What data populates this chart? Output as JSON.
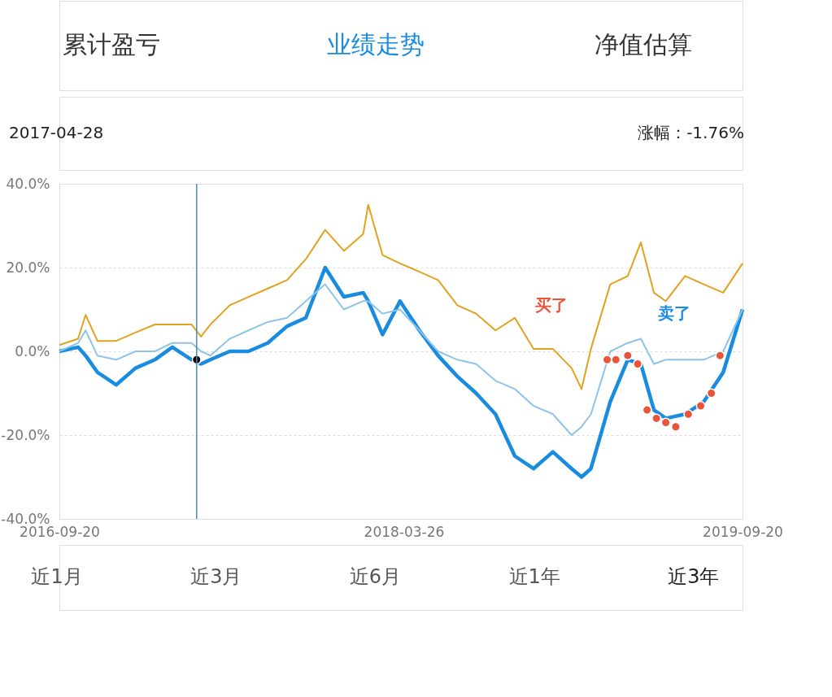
{
  "chart_data": {
    "type": "line",
    "x": [
      "2016-09-20",
      "2016-10-20",
      "2016-11-01",
      "2016-11-20",
      "2016-12-20",
      "2017-01-20",
      "2017-02-20",
      "2017-03-20",
      "2017-04-20",
      "2017-05-05",
      "2017-05-20",
      "2017-06-20",
      "2017-07-20",
      "2017-08-20",
      "2017-09-20",
      "2017-10-20",
      "2017-11-20",
      "2017-12-20",
      "2018-01-20",
      "2018-01-28",
      "2018-02-20",
      "2018-03-20",
      "2018-04-20",
      "2018-05-20",
      "2018-06-20",
      "2018-07-20",
      "2018-08-20",
      "2018-09-20",
      "2018-10-20",
      "2018-11-20",
      "2018-12-20",
      "2019-01-05",
      "2019-01-20",
      "2019-02-20",
      "2019-03-20",
      "2019-04-10",
      "2019-05-01",
      "2019-05-20",
      "2019-06-20",
      "2019-07-20",
      "2019-08-20",
      "2019-09-20"
    ],
    "series": [
      {
        "color": "#1a8ce0",
        "values": [
          0,
          1,
          -1,
          -5,
          -8,
          -4,
          -2,
          1,
          -2,
          -3,
          -2,
          0,
          0,
          2,
          6,
          8,
          20,
          13,
          14,
          12,
          4,
          12,
          5,
          -1,
          -6,
          -10,
          -15,
          -25,
          -28,
          -24,
          -28,
          -30,
          -28,
          -12,
          -2,
          -3,
          -14,
          -16,
          -15,
          -12,
          -5,
          10
        ]
      },
      {
        "color": "#8ec4ea",
        "values": [
          0,
          2,
          5,
          -1,
          -2,
          0,
          0,
          2,
          2,
          0,
          -1,
          3,
          5,
          7,
          8,
          12,
          16,
          10,
          12,
          12,
          9,
          10,
          5,
          0,
          -2,
          -3,
          -7,
          -9,
          -13,
          -15,
          -20,
          -18,
          -15,
          0,
          2,
          3,
          -3,
          -2,
          -2,
          -2,
          0,
          10
        ]
      },
      {
        "color": "#e2a21f",
        "values": [
          1.5,
          3,
          8.7,
          2.5,
          2.5,
          4.5,
          6.4,
          6.4,
          6.4,
          3.5,
          6.4,
          11,
          13,
          15,
          17,
          22,
          29,
          24,
          28,
          35,
          23,
          21,
          19,
          17,
          11,
          9,
          5,
          8,
          0.6,
          0.6,
          -4,
          -9,
          0.6,
          16,
          18,
          26,
          14,
          12,
          18,
          16,
          14,
          21
        ]
      },
      {
        "type": "scatter",
        "color": "#e8553a",
        "x": [
          "2019-02-15",
          "2019-03-01",
          "2019-03-20",
          "2019-04-05",
          "2019-04-20",
          "2019-05-05",
          "2019-05-20",
          "2019-06-05",
          "2019-06-25",
          "2019-07-15",
          "2019-08-01",
          "2019-08-15"
        ],
        "values": [
          -2,
          -2,
          -1,
          -3,
          -14,
          -16,
          -17,
          -18,
          -15,
          -13,
          -10,
          -1
        ]
      },
      {
        "type": "scatter",
        "color": "#000000",
        "x": [
          "2017-04-28"
        ],
        "values": [
          -2
        ]
      }
    ],
    "xlim": [
      "2016-09-20",
      "2019-09-20"
    ],
    "xticks": [
      {
        "value": "2016-09-20",
        "label": "2016-09-20"
      },
      {
        "value": "2018-03-26",
        "label": "2018-03-26"
      },
      {
        "value": "2019-09-20",
        "label": "2019-09-20"
      }
    ],
    "ylim": [
      -40,
      40
    ],
    "yticks": [
      {
        "value": -40,
        "label": "-40.0%"
      },
      {
        "value": -20,
        "label": "-20.0%"
      },
      {
        "value": 0,
        "label": "0.0%"
      },
      {
        "value": 20,
        "label": "20.0%"
      },
      {
        "value": 40,
        "label": "40.0%"
      }
    ],
    "grid": "y",
    "ref_lines": [
      {
        "axis": "x",
        "value": "2017-04-28",
        "label": null,
        "color": "#4a90b8"
      }
    ],
    "annotations": [
      "累计盈亏",
      "业绩走势",
      "净值估算",
      "2017-04-28",
      "涨幅：-1.76%",
      "近1月",
      "近3月",
      "近6月",
      "近1年",
      "近3年",
      "买了",
      "卖了"
    ]
  }
}
